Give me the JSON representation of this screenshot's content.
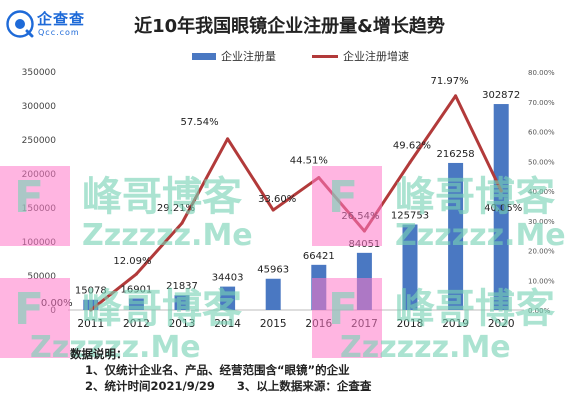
{
  "header": {
    "logo_name": "企查查",
    "logo_url": "Qcc.com"
  },
  "colors": {
    "bar": "#4a78c2",
    "line": "#b23a3a",
    "title": "#222222",
    "logo": "#1e6ad8"
  },
  "chart_data": {
    "type": "bar",
    "title": "近10年我国眼镜企业注册量&增长趋势",
    "categories": [
      "2011",
      "2012",
      "2013",
      "2014",
      "2015",
      "2016",
      "2017",
      "2018",
      "2019",
      "2020"
    ],
    "series": [
      {
        "name": "企业注册量",
        "type": "bar",
        "axis": "left",
        "values": [
          15078,
          16901,
          21837,
          34403,
          45963,
          66421,
          84051,
          125753,
          216258,
          302872
        ],
        "labels": [
          "15078",
          "16901",
          "21837",
          "34403",
          "45963",
          "66421",
          "84051",
          "125753",
          "216258",
          "302872"
        ]
      },
      {
        "name": "企业注册增速",
        "type": "line",
        "axis": "right",
        "values": [
          0.0,
          12.09,
          29.21,
          57.54,
          33.6,
          44.51,
          26.54,
          49.62,
          71.97,
          40.05
        ],
        "labels": [
          "0.00%",
          "12.09%",
          "29.21%",
          "57.54%",
          "33.60%",
          "44.51%",
          "26.54%",
          "49.62%",
          "71.97%",
          "40.05%"
        ]
      }
    ],
    "y_left": {
      "range": [
        0,
        350000
      ],
      "ticks": [
        "0",
        "50000",
        "100000",
        "150000",
        "200000",
        "250000",
        "300000",
        "350000"
      ]
    },
    "y_right": {
      "range": [
        0,
        80
      ],
      "ticks": [
        "0.00%",
        "10.00%",
        "20.00%",
        "30.00%",
        "40.00%",
        "50.00%",
        "60.00%",
        "70.00%",
        "80.00%"
      ]
    },
    "legend_position": "top-center",
    "grid": false
  },
  "notes": {
    "heading": "数据说明：",
    "line1": "1、仅统计企业名、产品、经营范围含“眼镜”的企业",
    "line2a": "2、统计时间2021/9/29",
    "line2b": "3、以上数据来源：企查查"
  },
  "watermark": {
    "text_cn": "峰哥博客",
    "text_en": "Zzzzzz.Me",
    "letter": "F"
  }
}
